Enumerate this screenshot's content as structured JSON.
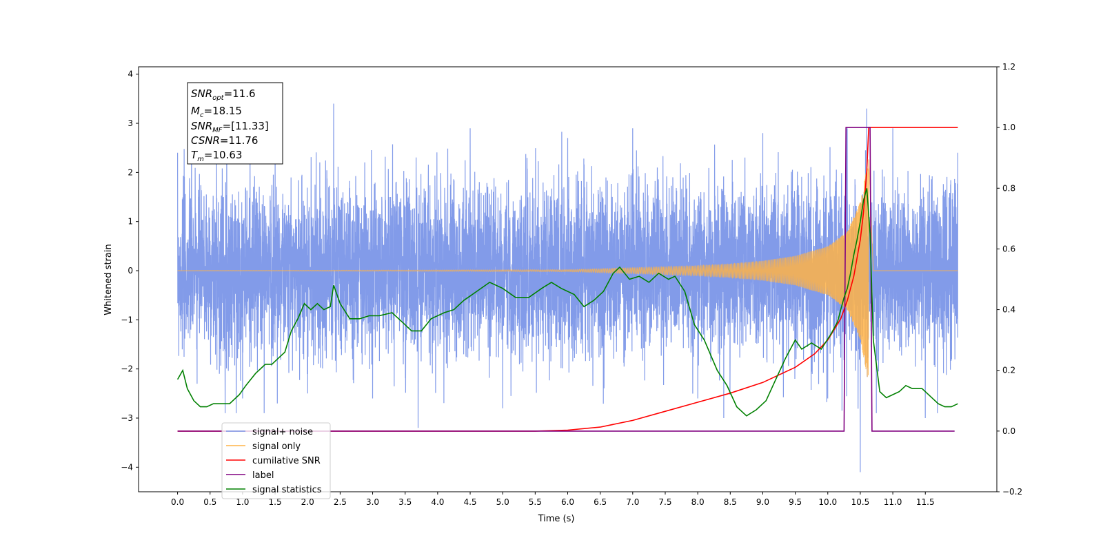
{
  "chart_data": {
    "type": "line",
    "xlabel": "Time (s)",
    "ylabel": "Whitened strain",
    "xlim": [
      -0.6,
      12.6
    ],
    "ylim": [
      -4.5,
      4.15
    ],
    "y2lim": [
      -0.2,
      1.2
    ],
    "x_ticks": [
      "0.0",
      "0.5",
      "1.0",
      "1.5",
      "2.0",
      "2.5",
      "3.0",
      "3.5",
      "4.0",
      "4.5",
      "5.0",
      "5.5",
      "6.0",
      "6.5",
      "7.0",
      "7.5",
      "8.0",
      "8.5",
      "9.0",
      "9.5",
      "10.0",
      "10.5",
      "11.0",
      "11.5"
    ],
    "y_ticks": [
      "4",
      "3",
      "2",
      "1",
      "0",
      "−1",
      "−2",
      "−3",
      "−4"
    ],
    "y2_ticks": [
      "1.2",
      "1.0",
      "0.8",
      "0.6",
      "0.4",
      "0.2",
      "0.0",
      "−0.2"
    ],
    "grid": false,
    "legend_position": "lower-left",
    "annotation": {
      "snr_opt": "=11.6",
      "mc": "=18.15",
      "snr_mf": "=[11.33]",
      "csnr": "=11.76",
      "tm": "=10.63"
    },
    "series": [
      {
        "name": "signal+ noise",
        "axis": "left",
        "color": "#7b96e8",
        "description": "whitened noise, amplitude ~ ±2.5 with spikes to ±3.4, from 0.0 to 12.0 s",
        "x": [
          0.0,
          0.3,
          0.6,
          1.0,
          1.5,
          2.0,
          2.4,
          3.0,
          3.7,
          4.5,
          5.0,
          6.0,
          7.0,
          8.0,
          8.4,
          9.0,
          10.0,
          10.3,
          10.5,
          10.6,
          11.0,
          11.5,
          12.0
        ],
        "y": [
          2.4,
          -2.3,
          2.7,
          -2.6,
          2.8,
          -2.5,
          3.4,
          -2.6,
          -3.2,
          2.9,
          -2.8,
          2.7,
          2.9,
          -2.6,
          -3.0,
          2.8,
          -2.6,
          2.9,
          -4.1,
          3.3,
          2.9,
          -3.0,
          2.4
        ]
      },
      {
        "name": "signal only",
        "axis": "left",
        "color": "#ffb347",
        "description": "chirp waveform, envelope grows from ~0 to ~2.3 before merger at ~10.63 s",
        "x": [
          0.0,
          6.0,
          7.0,
          8.0,
          8.5,
          9.0,
          9.5,
          10.0,
          10.3,
          10.5,
          10.6,
          10.63,
          10.7,
          12.0
        ],
        "envelope": [
          0.0,
          0.02,
          0.06,
          0.1,
          0.14,
          0.2,
          0.3,
          0.5,
          0.8,
          1.4,
          2.1,
          2.3,
          0.0,
          0.0
        ]
      },
      {
        "name": "cumilative SNR",
        "axis": "right",
        "color": "#ff0000",
        "x": [
          0.0,
          5.5,
          6.0,
          6.5,
          7.0,
          7.5,
          8.0,
          8.5,
          9.0,
          9.5,
          9.8,
          10.0,
          10.2,
          10.3,
          10.4,
          10.5,
          10.55,
          10.6,
          10.63,
          12.0
        ],
        "y": [
          0.0,
          0.0,
          0.003,
          0.013,
          0.035,
          0.065,
          0.095,
          0.125,
          0.16,
          0.21,
          0.255,
          0.3,
          0.37,
          0.43,
          0.51,
          0.63,
          0.72,
          0.86,
          1.0,
          1.0
        ]
      },
      {
        "name": "label",
        "axis": "right",
        "color": "#800080",
        "x": [
          0.0,
          10.25,
          10.28,
          10.65,
          10.68,
          11.95
        ],
        "y": [
          0.0,
          0.0,
          1.0,
          1.0,
          0.0,
          0.0
        ]
      },
      {
        "name": "signal statistics",
        "axis": "right",
        "color": "#008000",
        "x": [
          0.0,
          0.08,
          0.15,
          0.25,
          0.35,
          0.45,
          0.55,
          0.65,
          0.8,
          0.95,
          1.05,
          1.2,
          1.35,
          1.45,
          1.55,
          1.65,
          1.75,
          1.85,
          1.95,
          2.05,
          2.15,
          2.25,
          2.35,
          2.4,
          2.5,
          2.65,
          2.8,
          2.95,
          3.1,
          3.3,
          3.45,
          3.6,
          3.75,
          3.9,
          4.1,
          4.25,
          4.4,
          4.6,
          4.8,
          5.0,
          5.2,
          5.4,
          5.6,
          5.75,
          5.9,
          6.1,
          6.25,
          6.4,
          6.55,
          6.7,
          6.8,
          6.95,
          7.1,
          7.25,
          7.4,
          7.55,
          7.65,
          7.8,
          7.95,
          8.1,
          8.3,
          8.45,
          8.6,
          8.75,
          8.9,
          9.05,
          9.2,
          9.35,
          9.5,
          9.6,
          9.75,
          9.9,
          10.05,
          10.15,
          10.2,
          10.25,
          10.3,
          10.35,
          10.4,
          10.45,
          10.5,
          10.55,
          10.6,
          10.65,
          10.7,
          10.8,
          10.9,
          11.0,
          11.1,
          11.2,
          11.3,
          11.45,
          11.6,
          11.7,
          11.8,
          11.9,
          12.0
        ],
        "y": [
          0.17,
          0.2,
          0.14,
          0.1,
          0.08,
          0.08,
          0.09,
          0.09,
          0.09,
          0.12,
          0.15,
          0.19,
          0.22,
          0.22,
          0.24,
          0.26,
          0.33,
          0.37,
          0.42,
          0.4,
          0.42,
          0.4,
          0.41,
          0.48,
          0.42,
          0.37,
          0.37,
          0.38,
          0.38,
          0.39,
          0.36,
          0.33,
          0.33,
          0.37,
          0.39,
          0.4,
          0.43,
          0.46,
          0.49,
          0.47,
          0.44,
          0.44,
          0.47,
          0.49,
          0.47,
          0.45,
          0.41,
          0.43,
          0.46,
          0.52,
          0.54,
          0.5,
          0.51,
          0.49,
          0.52,
          0.5,
          0.51,
          0.46,
          0.35,
          0.3,
          0.2,
          0.15,
          0.08,
          0.05,
          0.07,
          0.1,
          0.17,
          0.24,
          0.3,
          0.27,
          0.29,
          0.27,
          0.32,
          0.36,
          0.4,
          0.44,
          0.47,
          0.52,
          0.58,
          0.63,
          0.69,
          0.76,
          0.8,
          0.65,
          0.3,
          0.13,
          0.11,
          0.12,
          0.13,
          0.15,
          0.14,
          0.14,
          0.11,
          0.09,
          0.08,
          0.08,
          0.09
        ]
      }
    ]
  }
}
